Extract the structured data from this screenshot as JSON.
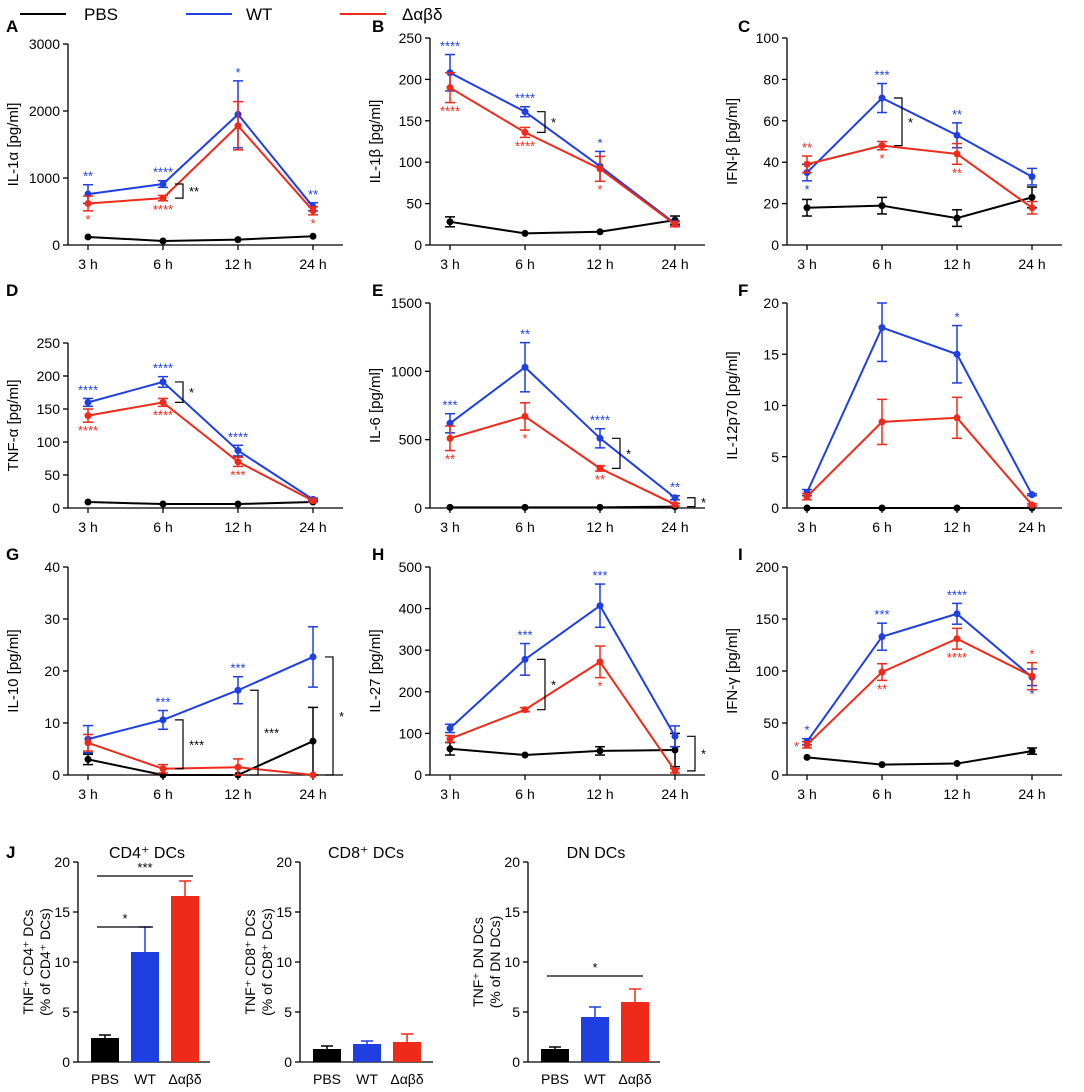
{
  "legend": {
    "items": [
      {
        "name": "PBS",
        "color": "#000000"
      },
      {
        "name": "WT",
        "color": "#1f3fe0"
      },
      {
        "name": "Δαβδ",
        "color": "#f02a1a"
      }
    ]
  },
  "colors": {
    "PBS": "#000000",
    "WT": "#1f3fe0",
    "DELTA": "#f02a1a"
  },
  "time_labels": [
    "3 h",
    "6 h",
    "12 h",
    "24 h"
  ],
  "chart_data": [
    {
      "type": "line",
      "panel": "A",
      "ylabel": "IL-1α [pg/ml]",
      "ylim": [
        0,
        3000
      ],
      "yticks": [
        0,
        1000,
        2000,
        3000
      ],
      "categories": [
        "3 h",
        "6 h",
        "12 h",
        "24 h"
      ],
      "series": [
        {
          "name": "PBS",
          "color": "#000000",
          "values": [
            120,
            60,
            80,
            130
          ],
          "errors": [
            0,
            0,
            0,
            0
          ]
        },
        {
          "name": "WT",
          "color": "#1f3fe0",
          "values": [
            760,
            910,
            1950,
            570
          ],
          "errors": [
            140,
            50,
            500,
            60
          ]
        },
        {
          "name": "Δαβδ",
          "color": "#f02a1a",
          "values": [
            620,
            700,
            1780,
            510
          ],
          "errors": [
            110,
            40,
            360,
            60
          ]
        }
      ],
      "stars": [
        {
          "i": 0,
          "series": "WT",
          "text": "**",
          "pos": "above"
        },
        {
          "i": 0,
          "series": "Δαβδ",
          "text": "*",
          "pos": "below"
        },
        {
          "i": 1,
          "series": "WT",
          "text": "****",
          "pos": "above"
        },
        {
          "i": 1,
          "series": "Δαβδ",
          "text": "****",
          "pos": "below"
        },
        {
          "i": 2,
          "series": "WT",
          "text": "*",
          "pos": "above"
        },
        {
          "i": 3,
          "series": "WT",
          "text": "**",
          "pos": "above"
        },
        {
          "i": 3,
          "series": "Δαβδ",
          "text": "*",
          "pos": "below"
        }
      ],
      "brackets": [
        {
          "i": 1,
          "text": "**",
          "y1": 910,
          "y2": 700
        }
      ]
    },
    {
      "type": "line",
      "panel": "B",
      "ylabel": "IL-1β [pg/ml]",
      "ylim": [
        0,
        250
      ],
      "yticks": [
        0,
        50,
        100,
        150,
        200,
        250
      ],
      "categories": [
        "3 h",
        "6 h",
        "12 h",
        "24 h"
      ],
      "series": [
        {
          "name": "PBS",
          "color": "#000000",
          "values": [
            28,
            14,
            16,
            30
          ],
          "errors": [
            6,
            0,
            0,
            5
          ]
        },
        {
          "name": "WT",
          "color": "#1f3fe0",
          "values": [
            208,
            161,
            95,
            26
          ],
          "errors": [
            22,
            6,
            18,
            3
          ]
        },
        {
          "name": "Δαβδ",
          "color": "#f02a1a",
          "values": [
            190,
            136,
            92,
            25
          ],
          "errors": [
            18,
            6,
            15,
            3
          ]
        }
      ],
      "stars": [
        {
          "i": 0,
          "series": "WT",
          "text": "****",
          "pos": "above"
        },
        {
          "i": 0,
          "series": "Δαβδ",
          "text": "****",
          "pos": "below"
        },
        {
          "i": 1,
          "series": "WT",
          "text": "****",
          "pos": "above"
        },
        {
          "i": 1,
          "series": "Δαβδ",
          "text": "****",
          "pos": "below"
        },
        {
          "i": 2,
          "series": "WT",
          "text": "*",
          "pos": "above"
        },
        {
          "i": 2,
          "series": "Δαβδ",
          "text": "*",
          "pos": "below"
        }
      ],
      "brackets": [
        {
          "i": 1,
          "text": "*",
          "y1": 161,
          "y2": 136
        }
      ]
    },
    {
      "type": "line",
      "panel": "C",
      "ylabel": "IFN-β [pg/ml]",
      "ylim": [
        0,
        100
      ],
      "yticks": [
        0,
        20,
        40,
        60,
        80,
        100
      ],
      "categories": [
        "3 h",
        "6 h",
        "12 h",
        "24 h"
      ],
      "series": [
        {
          "name": "PBS",
          "color": "#000000",
          "values": [
            18,
            19,
            13,
            23
          ],
          "errors": [
            4,
            4,
            4,
            5
          ]
        },
        {
          "name": "WT",
          "color": "#1f3fe0",
          "values": [
            35,
            71,
            53,
            33
          ],
          "errors": [
            4,
            7,
            6,
            4
          ]
        },
        {
          "name": "Δαβδ",
          "color": "#f02a1a",
          "values": [
            39,
            48,
            44,
            18
          ],
          "errors": [
            4,
            2,
            5,
            3
          ]
        }
      ],
      "stars": [
        {
          "i": 0,
          "series": "WT",
          "text": "*",
          "pos": "below"
        },
        {
          "i": 0,
          "series": "Δαβδ",
          "text": "**",
          "pos": "above"
        },
        {
          "i": 1,
          "series": "WT",
          "text": "***",
          "pos": "above"
        },
        {
          "i": 1,
          "series": "Δαβδ",
          "text": "*",
          "pos": "below"
        },
        {
          "i": 2,
          "series": "WT",
          "text": "**",
          "pos": "above"
        },
        {
          "i": 2,
          "series": "Δαβδ",
          "text": "**",
          "pos": "below"
        }
      ],
      "brackets": [
        {
          "i": 1,
          "text": "*",
          "y1": 71,
          "y2": 48
        }
      ]
    },
    {
      "type": "line",
      "panel": "D",
      "ylabel": "TNF-α [pg/ml]",
      "ylim": [
        0,
        250
      ],
      "yticks": [
        0,
        50,
        100,
        150,
        200,
        250
      ],
      "categories": [
        "3 h",
        "6 h",
        "12 h",
        "24 h"
      ],
      "series": [
        {
          "name": "PBS",
          "color": "#000000",
          "values": [
            9,
            6,
            6,
            9
          ],
          "errors": [
            0,
            0,
            0,
            0
          ]
        },
        {
          "name": "WT",
          "color": "#1f3fe0",
          "values": [
            160,
            191,
            87,
            13
          ],
          "errors": [
            6,
            8,
            8,
            2
          ]
        },
        {
          "name": "Δαβδ",
          "color": "#f02a1a",
          "values": [
            140,
            160,
            70,
            11
          ],
          "errors": [
            10,
            6,
            7,
            2
          ]
        }
      ],
      "stars": [
        {
          "i": 0,
          "series": "WT",
          "text": "****",
          "pos": "above"
        },
        {
          "i": 0,
          "series": "Δαβδ",
          "text": "****",
          "pos": "below"
        },
        {
          "i": 1,
          "series": "WT",
          "text": "****",
          "pos": "above"
        },
        {
          "i": 1,
          "series": "Δαβδ",
          "text": "****",
          "pos": "below"
        },
        {
          "i": 2,
          "series": "WT",
          "text": "****",
          "pos": "above"
        },
        {
          "i": 2,
          "series": "Δαβδ",
          "text": "***",
          "pos": "below"
        }
      ],
      "brackets": [
        {
          "i": 1,
          "text": "*",
          "y1": 191,
          "y2": 160
        }
      ]
    },
    {
      "type": "line",
      "panel": "E",
      "ylabel": "IL-6 [pg/ml]",
      "ylim": [
        0,
        1500
      ],
      "yticks": [
        0,
        500,
        1000,
        1500
      ],
      "categories": [
        "3 h",
        "6 h",
        "12 h",
        "24 h"
      ],
      "series": [
        {
          "name": "PBS",
          "color": "#000000",
          "values": [
            5,
            5,
            5,
            10
          ],
          "errors": [
            0,
            0,
            0,
            0
          ]
        },
        {
          "name": "WT",
          "color": "#1f3fe0",
          "values": [
            620,
            1030,
            510,
            75
          ],
          "errors": [
            70,
            180,
            70,
            15
          ]
        },
        {
          "name": "Δαβδ",
          "color": "#f02a1a",
          "values": [
            510,
            670,
            290,
            25
          ],
          "errors": [
            90,
            100,
            20,
            10
          ]
        }
      ],
      "stars": [
        {
          "i": 0,
          "series": "WT",
          "text": "***",
          "pos": "above"
        },
        {
          "i": 0,
          "series": "Δαβδ",
          "text": "**",
          "pos": "below"
        },
        {
          "i": 1,
          "series": "WT",
          "text": "**",
          "pos": "above"
        },
        {
          "i": 1,
          "series": "Δαβδ",
          "text": "*",
          "pos": "below"
        },
        {
          "i": 2,
          "series": "WT",
          "text": "****",
          "pos": "above"
        },
        {
          "i": 2,
          "series": "Δαβδ",
          "text": "**",
          "pos": "below"
        },
        {
          "i": 3,
          "series": "WT",
          "text": "**",
          "pos": "above"
        }
      ],
      "brackets": [
        {
          "i": 2,
          "text": "*",
          "y1": 510,
          "y2": 290
        },
        {
          "i": 3,
          "text": "*",
          "y1": 75,
          "y2": 10
        }
      ]
    },
    {
      "type": "line",
      "panel": "F",
      "ylabel": "IL-12p70 [pg/ml]",
      "ylim": [
        0,
        20
      ],
      "yticks": [
        0,
        5,
        10,
        15,
        20
      ],
      "categories": [
        "3 h",
        "6 h",
        "12 h",
        "24 h"
      ],
      "series": [
        {
          "name": "PBS",
          "color": "#000000",
          "values": [
            0,
            0,
            0,
            0
          ],
          "errors": [
            0,
            0,
            0,
            0
          ]
        },
        {
          "name": "WT",
          "color": "#1f3fe0",
          "values": [
            1.5,
            17.6,
            15.0,
            1.3
          ],
          "errors": [
            0.3,
            3.3,
            2.8,
            0.1
          ]
        },
        {
          "name": "Δαβδ",
          "color": "#f02a1a",
          "values": [
            1.1,
            8.4,
            8.8,
            0.3
          ],
          "errors": [
            0.3,
            2.2,
            2.0,
            0.1
          ]
        }
      ],
      "stars": [
        {
          "i": 2,
          "series": "WT",
          "text": "*",
          "pos": "above"
        }
      ],
      "brackets": []
    },
    {
      "type": "line",
      "panel": "G",
      "ylabel": "IL-10 [pg/ml]",
      "ylim": [
        0,
        40
      ],
      "yticks": [
        0,
        10,
        20,
        30,
        40
      ],
      "categories": [
        "3 h",
        "6 h",
        "12 h",
        "24 h"
      ],
      "series": [
        {
          "name": "PBS",
          "color": "#000000",
          "values": [
            3,
            0,
            0,
            6.5
          ],
          "errors": [
            1,
            0,
            0,
            6.5
          ]
        },
        {
          "name": "WT",
          "color": "#1f3fe0",
          "values": [
            6.9,
            10.6,
            16.3,
            22.7
          ],
          "errors": [
            2.6,
            1.8,
            2.6,
            5.8
          ]
        },
        {
          "name": "Δαβδ",
          "color": "#f02a1a",
          "values": [
            6.2,
            1.2,
            1.5,
            0
          ],
          "errors": [
            1.6,
            0.8,
            1.6,
            0
          ]
        }
      ],
      "stars": [
        {
          "i": 1,
          "series": "WT",
          "text": "***",
          "pos": "above"
        },
        {
          "i": 2,
          "series": "WT",
          "text": "***",
          "pos": "above"
        }
      ],
      "brackets": [
        {
          "i": 1,
          "text": "***",
          "y1": 10.6,
          "y2": 1.2
        },
        {
          "i": 2,
          "text": "***",
          "y1": 16.3,
          "y2": 0
        },
        {
          "i": 3,
          "text": "*",
          "y1": 22.7,
          "y2": 0
        }
      ]
    },
    {
      "type": "line",
      "panel": "H",
      "ylabel": "IL-27 [pg/ml]",
      "ylim": [
        0,
        500
      ],
      "yticks": [
        0,
        100,
        200,
        300,
        400,
        500
      ],
      "categories": [
        "3 h",
        "6 h",
        "12 h",
        "24 h"
      ],
      "series": [
        {
          "name": "PBS",
          "color": "#000000",
          "values": [
            63,
            48,
            58,
            60
          ],
          "errors": [
            15,
            0,
            10,
            40
          ]
        },
        {
          "name": "WT",
          "color": "#1f3fe0",
          "values": [
            112,
            278,
            407,
            93
          ],
          "errors": [
            10,
            38,
            52,
            25
          ]
        },
        {
          "name": "Δαβδ",
          "color": "#f02a1a",
          "values": [
            87,
            157,
            272,
            10
          ],
          "errors": [
            8,
            5,
            38,
            5
          ]
        }
      ],
      "stars": [
        {
          "i": 1,
          "series": "WT",
          "text": "***",
          "pos": "above"
        },
        {
          "i": 2,
          "series": "WT",
          "text": "***",
          "pos": "above"
        },
        {
          "i": 2,
          "series": "Δαβδ",
          "text": "*",
          "pos": "below"
        }
      ],
      "brackets": [
        {
          "i": 1,
          "text": "*",
          "y1": 278,
          "y2": 157
        },
        {
          "i": 3,
          "text": "*",
          "y1": 93,
          "y2": 10
        }
      ]
    },
    {
      "type": "line",
      "panel": "I",
      "ylabel": "IFN-γ [pg/ml]",
      "ylim": [
        0,
        200
      ],
      "yticks": [
        0,
        50,
        100,
        150,
        200
      ],
      "categories": [
        "3 h",
        "6 h",
        "12 h",
        "24 h"
      ],
      "series": [
        {
          "name": "PBS",
          "color": "#000000",
          "values": [
            17,
            10,
            11,
            23
          ],
          "errors": [
            0,
            0,
            0,
            3
          ]
        },
        {
          "name": "WT",
          "color": "#1f3fe0",
          "values": [
            32,
            133,
            155,
            94
          ],
          "errors": [
            3,
            13,
            10,
            8
          ]
        },
        {
          "name": "Δαβδ",
          "color": "#f02a1a",
          "values": [
            29,
            99,
            131,
            95
          ],
          "errors": [
            3,
            8,
            10,
            13
          ]
        }
      ],
      "stars": [
        {
          "i": 0,
          "series": "WT",
          "text": "*",
          "pos": "above"
        },
        {
          "i": 0,
          "series": "Δαβδ",
          "text": "*",
          "pos": "left"
        },
        {
          "i": 1,
          "series": "WT",
          "text": "***",
          "pos": "above"
        },
        {
          "i": 1,
          "series": "Δαβδ",
          "text": "**",
          "pos": "below"
        },
        {
          "i": 2,
          "series": "WT",
          "text": "****",
          "pos": "above"
        },
        {
          "i": 2,
          "series": "Δαβδ",
          "text": "****",
          "pos": "below"
        },
        {
          "i": 3,
          "series": "WT",
          "text": "*",
          "pos": "below"
        },
        {
          "i": 3,
          "series": "Δαβδ",
          "text": "*",
          "pos": "above"
        }
      ],
      "brackets": []
    },
    {
      "type": "bar",
      "panel": "J",
      "title": "CD4⁺ DCs",
      "ylabel": "TNF⁺ CD4⁺ DCs (% of CD4⁺ DCs)",
      "ylabel_lines": [
        "TNF⁺ CD4⁺ DCs",
        "(% of CD4⁺ DCs)"
      ],
      "ylim": [
        0,
        20
      ],
      "yticks": [
        0,
        5,
        10,
        15,
        20
      ],
      "categories": [
        "PBS",
        "WT",
        "Δαβδ"
      ],
      "values": [
        2.4,
        11.0,
        16.6
      ],
      "errors": [
        0.3,
        2.5,
        1.5
      ],
      "colors": [
        "#000000",
        "#1f3fe0",
        "#f02a1a"
      ],
      "sig": [
        {
          "from": 0,
          "to": 1,
          "text": "*",
          "y": 13.5
        },
        {
          "from": 0,
          "to": 2,
          "text": "***",
          "y": 18.6
        }
      ]
    },
    {
      "type": "bar",
      "title": "CD8⁺ DCs",
      "ylabel": "TNF⁺ CD8⁺ DCs (% of CD8⁺ DCs)",
      "ylabel_lines": [
        "TNF⁺ CD8⁺ DCs",
        "(% of CD8⁺ DCs)"
      ],
      "ylim": [
        0,
        20
      ],
      "yticks": [
        0,
        5,
        10,
        15,
        20
      ],
      "categories": [
        "PBS",
        "WT",
        "Δαβδ"
      ],
      "values": [
        1.3,
        1.8,
        2.0
      ],
      "errors": [
        0.3,
        0.3,
        0.8
      ],
      "colors": [
        "#000000",
        "#1f3fe0",
        "#f02a1a"
      ],
      "sig": []
    },
    {
      "type": "bar",
      "title": "DN DCs",
      "ylabel": "TNF⁺ DN DCs (% of DN DCs)",
      "ylabel_lines": [
        "TNF⁺ DN DCs",
        "(% of DN DCs)"
      ],
      "ylim": [
        0,
        20
      ],
      "yticks": [
        0,
        5,
        10,
        15,
        20
      ],
      "categories": [
        "PBS",
        "WT",
        "Δαβδ"
      ],
      "values": [
        1.3,
        4.5,
        6.0
      ],
      "errors": [
        0.2,
        1.0,
        1.3
      ],
      "colors": [
        "#000000",
        "#1f3fe0",
        "#f02a1a"
      ],
      "sig": [
        {
          "from": 0,
          "to": 2,
          "text": "*",
          "y": 8.6
        }
      ]
    }
  ]
}
